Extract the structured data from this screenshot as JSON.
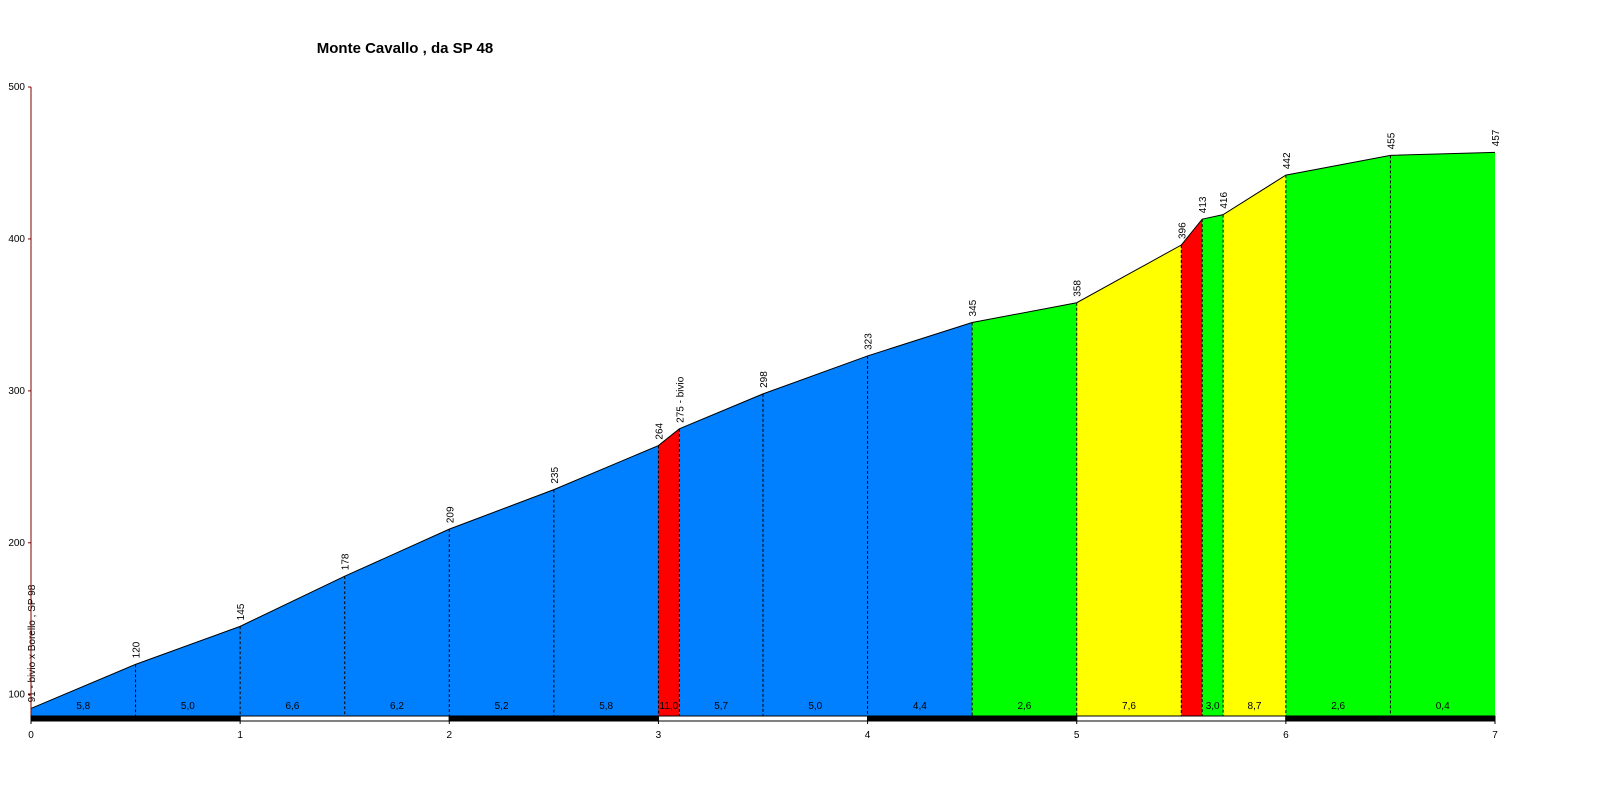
{
  "chart_data": {
    "type": "area",
    "title": "Monte Cavallo , da SP 48",
    "x": [
      0,
      0.5,
      1,
      1.5,
      2,
      2.5,
      3,
      3.1,
      3.5,
      4,
      4.5,
      5,
      5.5,
      5.6,
      5.7,
      6,
      6.5,
      7
    ],
    "values": [
      91,
      120,
      145,
      178,
      209,
      235,
      264,
      275,
      298,
      323,
      345,
      358,
      396,
      413,
      416,
      442,
      455,
      457
    ],
    "value_labels": [
      "91 - bivio x Borello , SP 98",
      "120",
      "145",
      "178",
      "209",
      "235",
      "264",
      "275 - bivio",
      "298",
      "323",
      "345",
      "358",
      "396",
      "413",
      "416",
      "442",
      "455",
      "457"
    ],
    "segments": {
      "values": [
        5.8,
        5.0,
        6.6,
        6.2,
        5.2,
        5.8,
        11.0,
        5.7,
        5.0,
        4.4,
        2.6,
        7.6,
        null,
        3.0,
        8.7,
        2.6,
        0.4
      ],
      "labels": [
        "5,8",
        "5,0",
        "6,6",
        "6,2",
        "5,2",
        "5,8",
        "11,0",
        "5,7",
        "5,0",
        "4,4",
        "2,6",
        "7,6",
        null,
        "3,0",
        "8,7",
        "2,6",
        "0,4"
      ],
      "colors": [
        "#0080ff",
        "#0080ff",
        "#0080ff",
        "#0080ff",
        "#0080ff",
        "#0080ff",
        "#ff0000",
        "#0080ff",
        "#0080ff",
        "#0080ff",
        "#00ff00",
        "#ffff00",
        "#ff0000",
        "#00ff00",
        "#ffff00",
        "#00ff00",
        "#00ff00"
      ]
    },
    "xlim": [
      0,
      7
    ],
    "xticks": [
      0,
      1,
      2,
      3,
      4,
      5,
      6,
      7
    ],
    "ylim": [
      86,
      500
    ],
    "yticks": [
      100,
      200,
      300,
      400,
      500
    ]
  }
}
